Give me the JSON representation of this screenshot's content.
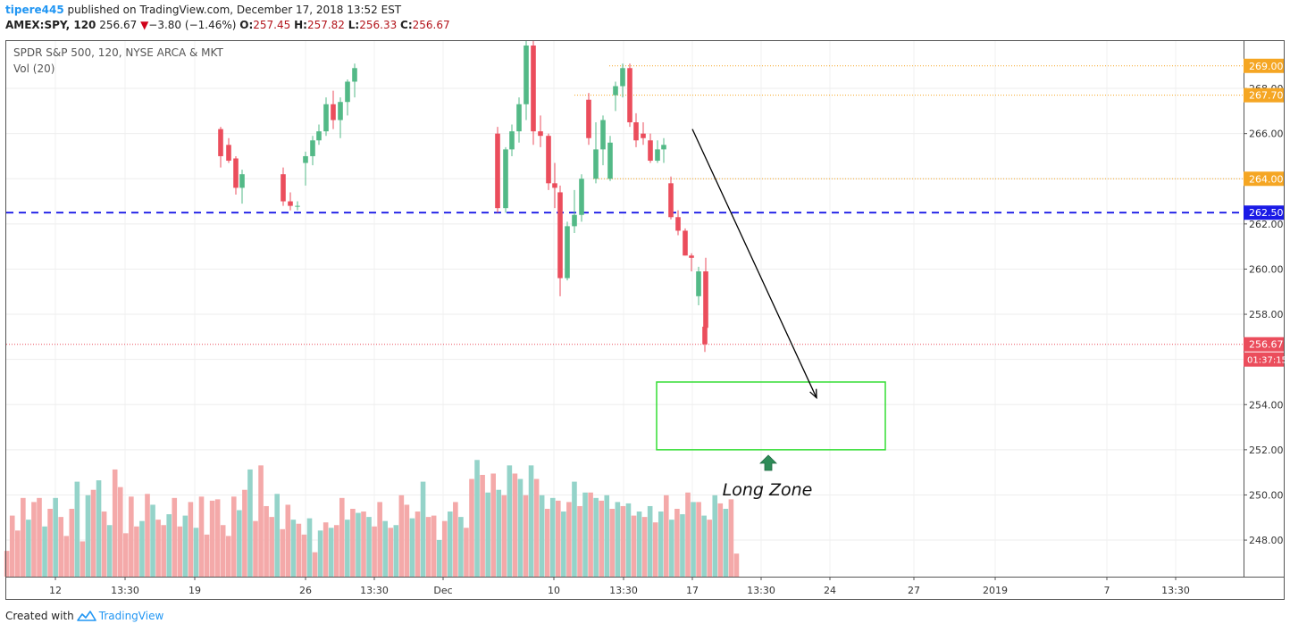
{
  "header": {
    "user": "tipere445",
    "published": " published on TradingView.com, December 17, 2018 13:52 EST",
    "symbol": "AMEX:SPY, 120",
    "last": "256.67",
    "change_arrow": "▼",
    "change": "−3.80 (−1.46%)",
    "o_label": "O:",
    "o_value": "257.45",
    "h_label": "H:",
    "h_value": "257.82",
    "l_label": "L:",
    "l_value": "256.33",
    "c_label": "C:",
    "c_value": "256.67"
  },
  "legend": {
    "series_title": "SPDR S&P 500, 120, NYSE ARCA & MKT",
    "volume_title": "Vol (20)"
  },
  "footer": {
    "created_with": "Created with",
    "brand": "TradingView"
  },
  "colors": {
    "up": "#53b987",
    "down": "#eb4d5c",
    "vol_up": "#94d3c9",
    "vol_down": "#f4a9a9",
    "orange": "#f5a623",
    "blue_line": "#1a1ae6",
    "red_line": "#eb4d5c",
    "green_box": "#33dd33",
    "arrow_green": "#2e8b57"
  },
  "chart_data": {
    "type": "candlestick",
    "y_axis": {
      "range": [
        246.2,
        270.5
      ],
      "ticks": [
        "248.00",
        "250.00",
        "252.00",
        "254.00",
        "256.00",
        "258.00",
        "260.00",
        "262.00",
        "264.00",
        "266.00",
        "268.00"
      ]
    },
    "x_axis": {
      "ticks": [
        "12",
        "13:30",
        "19",
        "26",
        "13:30",
        "Dec",
        "10",
        "13:30",
        "17",
        "13:30",
        "24",
        "27",
        "2019",
        "7",
        "13:30"
      ]
    },
    "horizontal_levels": [
      {
        "label": "269.00",
        "value": 269.0,
        "style": "dotted",
        "color": "#f5a623"
      },
      {
        "label": "267.70",
        "value": 267.7,
        "style": "dotted",
        "color": "#f5a623"
      },
      {
        "label": "264.00",
        "value": 264.0,
        "style": "dotted",
        "color": "#f5a623"
      },
      {
        "label": "262.50",
        "value": 262.5,
        "style": "dashed",
        "color": "#1a1ae6"
      },
      {
        "label": "256.67",
        "value": 256.67,
        "style": "dotted",
        "color": "#eb4d5c"
      }
    ],
    "countdown_label": "01:37:15",
    "annotations": {
      "zone_label": "Long Zone",
      "zone_range": [
        252.0,
        255.0
      ],
      "arrow": {
        "from": 266.2,
        "to": 254.3
      }
    },
    "candles_visible_in_upper_plot": [
      [
        266.2,
        266.3,
        264.5,
        265.0
      ],
      [
        265.5,
        265.8,
        264.7,
        264.8
      ],
      [
        264.9,
        265.0,
        263.3,
        263.6
      ],
      [
        263.6,
        264.4,
        262.9,
        264.2
      ],
      [
        264.2,
        264.5,
        262.8,
        263.0
      ],
      [
        263.0,
        263.4,
        262.6,
        262.8
      ],
      [
        262.8,
        263.0,
        262.6,
        262.8
      ],
      [
        264.7,
        265.2,
        263.7,
        265.0
      ],
      [
        265.0,
        265.9,
        264.6,
        265.7
      ],
      [
        265.7,
        266.4,
        265.5,
        266.1
      ],
      [
        266.1,
        267.6,
        265.9,
        267.3
      ],
      [
        267.3,
        267.9,
        266.2,
        266.6
      ],
      [
        266.6,
        267.6,
        265.8,
        267.4
      ],
      [
        267.4,
        268.4,
        266.8,
        268.3
      ],
      [
        268.3,
        269.1,
        267.6,
        268.9
      ],
      [
        266.0,
        266.3,
        262.5,
        262.7
      ],
      [
        262.7,
        265.4,
        262.5,
        265.3
      ],
      [
        265.3,
        266.4,
        265.0,
        266.1
      ],
      [
        266.1,
        267.6,
        265.6,
        267.3
      ],
      [
        267.3,
        270.2,
        266.6,
        269.9
      ],
      [
        269.9,
        270.3,
        265.5,
        266.1
      ],
      [
        266.1,
        266.8,
        265.4,
        265.9
      ],
      [
        265.9,
        266.0,
        263.5,
        263.8
      ],
      [
        263.8,
        264.7,
        262.7,
        263.6
      ],
      [
        263.4,
        263.7,
        258.8,
        259.6
      ],
      [
        259.6,
        262.1,
        259.5,
        261.9
      ],
      [
        261.9,
        263.5,
        261.6,
        262.4
      ],
      [
        262.4,
        264.2,
        262.1,
        264.0
      ],
      [
        267.5,
        267.8,
        265.5,
        265.8
      ],
      [
        264.0,
        266.5,
        263.8,
        265.3
      ],
      [
        265.3,
        266.8,
        264.6,
        266.6
      ],
      [
        264.0,
        265.9,
        263.9,
        265.6
      ],
      [
        267.7,
        268.3,
        267.0,
        268.1
      ],
      [
        268.1,
        269.1,
        267.6,
        268.9
      ],
      [
        268.9,
        269.1,
        266.3,
        266.5
      ],
      [
        266.5,
        266.9,
        265.4,
        265.7
      ],
      [
        266.0,
        266.5,
        265.5,
        265.8
      ],
      [
        265.7,
        266.0,
        264.7,
        264.8
      ],
      [
        264.8,
        265.7,
        264.7,
        265.3
      ],
      [
        265.3,
        265.8,
        264.7,
        265.5
      ],
      [
        263.8,
        264.1,
        262.2,
        262.3
      ],
      [
        262.3,
        262.6,
        261.5,
        261.7
      ],
      [
        261.7,
        261.8,
        260.6,
        260.6
      ],
      [
        260.6,
        260.7,
        259.9,
        260.5
      ],
      [
        258.8,
        260.1,
        258.4,
        259.9
      ],
      [
        259.9,
        260.5,
        257.2,
        257.4
      ],
      [
        257.45,
        257.82,
        256.33,
        256.67
      ]
    ],
    "volume_bars": [
      {
        "h": [
          0.19,
          0.45,
          0.34,
          0.58,
          0.42,
          0.55,
          0.58,
          0.37,
          0.5,
          0.58,
          0.44,
          0.3,
          0.5,
          0.7,
          0.26,
          0.6,
          0.64,
          0.71,
          0.48,
          0.38,
          0.79,
          0.66,
          0.32,
          0.59,
          0.37,
          0.41,
          0.61,
          0.53,
          0.42,
          0.38,
          0.46,
          0.58,
          0.37,
          0.45,
          0.55,
          0.36,
          0.59,
          0.31,
          0.56,
          0.57,
          0.38,
          0.3,
          0.59,
          0.49,
          0.64,
          0.79,
          0.41,
          0.82,
          0.52,
          0.44,
          0.61,
          0.35,
          0.53,
          0.42,
          0.39,
          0.31,
          0.43,
          0.18,
          0.34,
          0.4,
          0.36,
          0.38,
          0.58,
          0.42,
          0.5,
          0.47,
          0.48,
          0.44,
          0.37,
          0.55,
          0.41,
          0.36,
          0.38,
          0.6,
          0.53,
          0.43,
          0.48,
          0.7,
          0.44,
          0.45,
          0.27,
          0.41,
          0.48,
          0.55,
          0.44,
          0.36,
          0.72,
          0.86,
          0.75,
          0.62,
          0.76,
          0.64,
          0.6,
          0.82,
          0.76,
          0.72,
          0.6,
          0.82,
          0.72,
          0.6,
          0.5,
          0.58,
          0.56,
          0.48,
          0.55,
          0.7,
          0.52,
          0.62,
          0.62,
          0.58,
          0.56,
          0.6,
          0.5,
          0.55,
          0.52,
          0.54,
          0.45,
          0.48,
          0.44,
          0.52,
          0.4,
          0.48,
          0.6,
          0.42,
          0.5,
          0.46,
          0.62,
          0.55,
          0.55,
          0.45,
          0.42,
          0.6,
          0.54,
          0.5,
          0.57,
          0.17
        ]
      }
    ]
  }
}
